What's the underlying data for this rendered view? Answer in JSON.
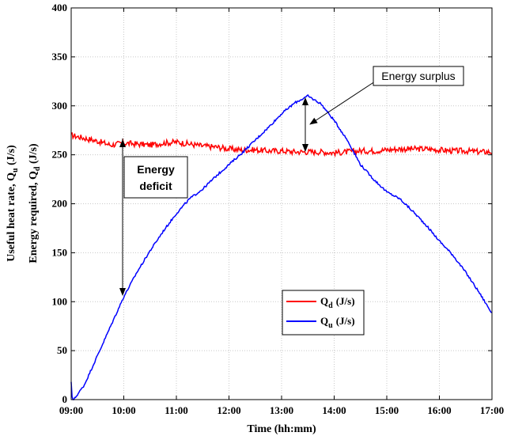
{
  "chart_data": {
    "type": "line",
    "xlabel": "Time (hh:mm)",
    "ylabel_lines": [
      "Useful heat rate, Q_u (J/s)",
      "Energy required, Q_d (J/s)"
    ],
    "x_tick_labels": [
      "09:00",
      "10:00",
      "11:00",
      "12:00",
      "13:00",
      "14:00",
      "15:00",
      "16:00",
      "17:00"
    ],
    "xlim": [
      9,
      17
    ],
    "ylim": [
      0,
      400
    ],
    "y_ticks": [
      0,
      50,
      100,
      150,
      200,
      250,
      300,
      350,
      400
    ],
    "grid": true,
    "series": [
      {
        "name": "Q_d (J/s)",
        "label_main": "Q",
        "label_sub": "d",
        "label_unit": "(J/s)",
        "color": "#ff0000",
        "x": [
          9.0,
          9.25,
          9.5,
          9.75,
          10.0,
          10.25,
          10.5,
          10.75,
          11.0,
          11.25,
          11.5,
          11.75,
          12.0,
          12.25,
          12.5,
          12.75,
          13.0,
          13.25,
          13.5,
          13.75,
          14.0,
          14.25,
          14.5,
          14.75,
          15.0,
          15.25,
          15.5,
          15.75,
          16.0,
          16.25,
          16.5,
          16.75,
          17.0
        ],
        "y": [
          270,
          267,
          264,
          260,
          262,
          261,
          260,
          262,
          263,
          261,
          259,
          258,
          256,
          255,
          255,
          254,
          254,
          253,
          253,
          253,
          252,
          253,
          254,
          254,
          255,
          256,
          256,
          256,
          255,
          254,
          254,
          253,
          253
        ]
      },
      {
        "name": "Q_u (J/s)",
        "label_main": "Q",
        "label_sub": "u",
        "label_unit": "(J/s)",
        "color": "#0000ff",
        "x": [
          9.0,
          9.02,
          9.05,
          9.25,
          9.5,
          9.75,
          10.0,
          10.25,
          10.5,
          10.75,
          11.0,
          11.25,
          11.5,
          11.75,
          12.0,
          12.25,
          12.5,
          12.75,
          13.0,
          13.25,
          13.5,
          13.75,
          14.0,
          14.25,
          14.5,
          14.75,
          15.0,
          15.25,
          15.5,
          15.75,
          16.0,
          16.25,
          16.5,
          16.75,
          17.0
        ],
        "y": [
          18,
          0,
          0,
          15,
          45,
          75,
          105,
          130,
          152,
          172,
          190,
          205,
          215,
          228,
          240,
          252,
          265,
          278,
          292,
          303,
          310,
          302,
          285,
          265,
          240,
          225,
          212,
          205,
          192,
          178,
          162,
          148,
          130,
          110,
          88
        ]
      }
    ],
    "legend_position": "center-right",
    "annotations": [
      {
        "text": "Energy surplus",
        "boxed": true
      },
      {
        "text": "Energy deficit",
        "lines": [
          "Energy",
          "deficit"
        ],
        "boxed": true
      }
    ]
  }
}
